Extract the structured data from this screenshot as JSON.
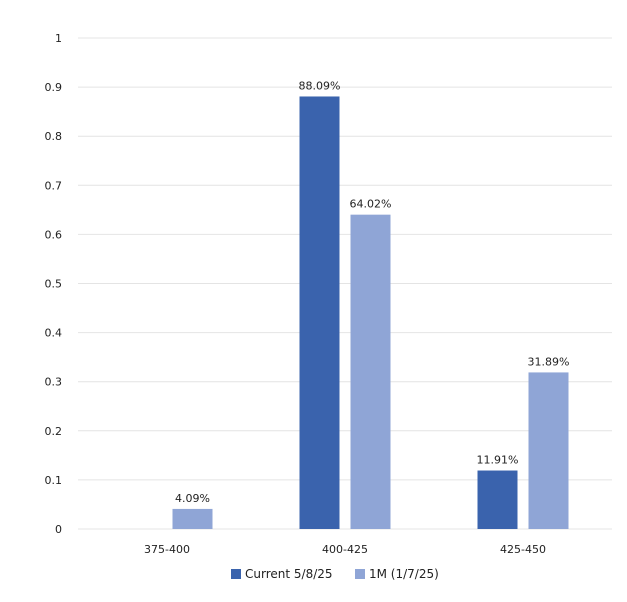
{
  "chart_data": {
    "type": "bar",
    "title": "",
    "xlabel": "",
    "ylabel": "",
    "categories": [
      "375-400",
      "400-425",
      "425-450"
    ],
    "ylim": [
      0,
      1
    ],
    "yticks": [
      0,
      0.1,
      0.2,
      0.3,
      0.4,
      0.5,
      0.6,
      0.7,
      0.8,
      0.9,
      1
    ],
    "ytick_labels": [
      "0",
      "0.1",
      "0.2",
      "0.3",
      "0.4",
      "0.5",
      "0.6",
      "0.7",
      "0.8",
      "0.9",
      "1"
    ],
    "grid": true,
    "legend_position": "bottom",
    "series": [
      {
        "name": "Current 5/8/25",
        "color": "#3a63ad",
        "values": [
          0,
          0.8809,
          0.1191
        ],
        "labels": [
          "",
          "88.09%",
          "11.91%"
        ]
      },
      {
        "name": "1M (1/7/25)",
        "color": "#8fa5d6",
        "values": [
          0.0409,
          0.6402,
          0.3189
        ],
        "labels": [
          "4.09%",
          "64.02%",
          "31.89%"
        ]
      }
    ]
  }
}
